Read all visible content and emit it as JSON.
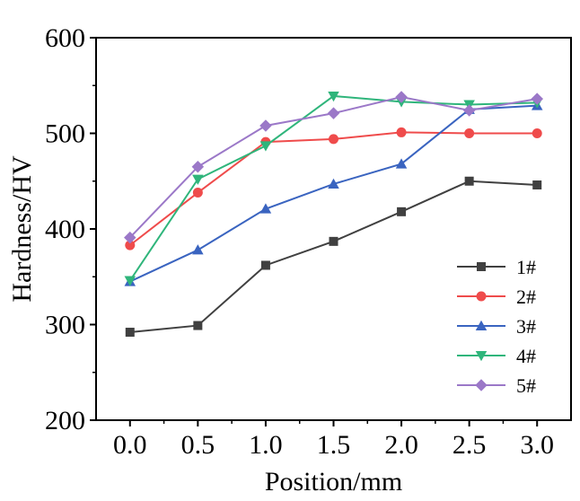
{
  "chart_data": {
    "type": "line",
    "title": "",
    "xlabel": "Position/mm",
    "ylabel": "Hardness/HV",
    "x": [
      0.0,
      0.5,
      1.0,
      1.5,
      2.0,
      2.5,
      3.0
    ],
    "x_tick_labels": [
      "0.0",
      "0.5",
      "1.0",
      "1.5",
      "2.0",
      "2.5",
      "3.0"
    ],
    "xlim": [
      -0.25,
      3.25
    ],
    "ylim": [
      200,
      600
    ],
    "y_ticks": [
      200,
      300,
      400,
      500,
      600
    ],
    "y_tick_labels": [
      "200",
      "300",
      "400",
      "500",
      "600"
    ],
    "legend_position": "bottom-right",
    "grid": false,
    "series": [
      {
        "name": "1#",
        "color": "#404040",
        "marker": "square",
        "values": [
          292,
          299,
          362,
          387,
          418,
          450,
          446
        ]
      },
      {
        "name": "2#",
        "color": "#ef4b4b",
        "marker": "circle",
        "values": [
          383,
          438,
          491,
          494,
          501,
          500,
          500
        ]
      },
      {
        "name": "3#",
        "color": "#3a64c0",
        "marker": "triangle-up",
        "values": [
          345,
          378,
          421,
          447,
          468,
          525,
          529
        ]
      },
      {
        "name": "4#",
        "color": "#2fb57b",
        "marker": "triangle-down",
        "values": [
          346,
          452,
          487,
          539,
          533,
          530,
          532
        ]
      },
      {
        "name": "5#",
        "color": "#9b78c8",
        "marker": "diamond",
        "values": [
          391,
          465,
          508,
          521,
          538,
          524,
          536
        ]
      }
    ]
  }
}
